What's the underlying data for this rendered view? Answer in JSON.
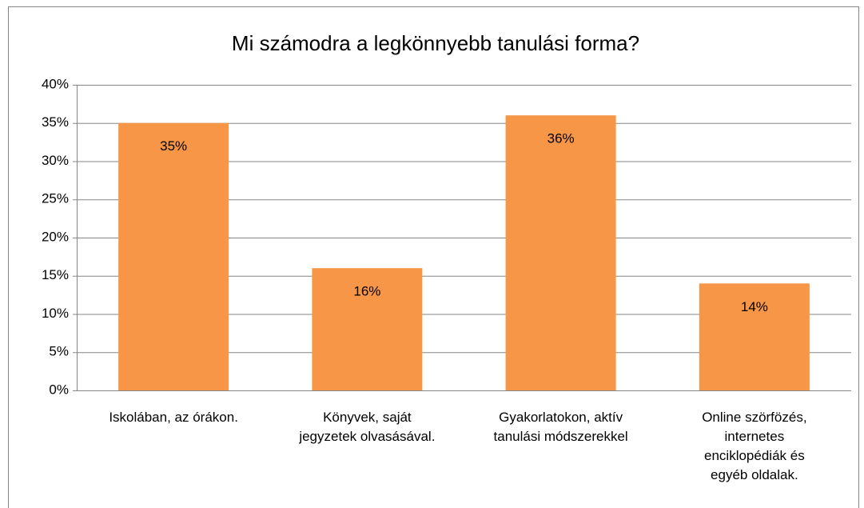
{
  "chart_data": {
    "type": "bar",
    "title": "Mi számodra a legkönnyebb tanulási forma?",
    "categories": [
      "Iskolában, az órákon.",
      "Könyvek, saját\njegyzetek olvasásával.",
      "Gyakorlatokon, aktív\ntanulási módszerekkel",
      "Online szörfözés,\ninternetes\nenciklopédiák és\negyéb oldalak."
    ],
    "values": [
      35,
      16,
      36,
      14
    ],
    "value_labels": [
      "35%",
      "16%",
      "36%",
      "14%"
    ],
    "color": "#f79646",
    "ylim": [
      0,
      40
    ],
    "yticks": [
      {
        "value": 0,
        "label": "0%"
      },
      {
        "value": 5,
        "label": "5%"
      },
      {
        "value": 10,
        "label": "10%"
      },
      {
        "value": 15,
        "label": "15%"
      },
      {
        "value": 20,
        "label": "20%"
      },
      {
        "value": 25,
        "label": "25%"
      },
      {
        "value": 30,
        "label": "30%"
      },
      {
        "value": 35,
        "label": "35%"
      },
      {
        "value": 40,
        "label": "40%"
      }
    ],
    "grid": true
  }
}
